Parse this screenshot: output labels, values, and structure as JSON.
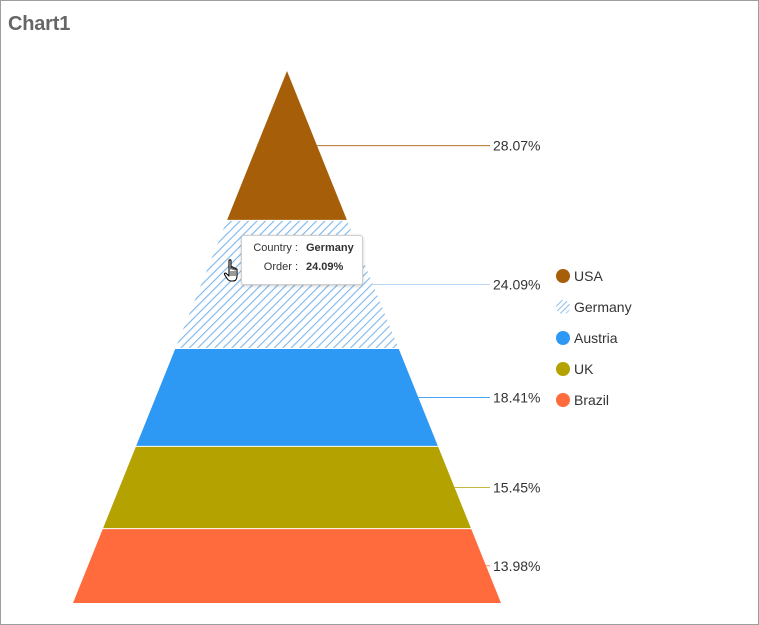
{
  "chart_title": "Chart1",
  "colors": {
    "USA": "#a65f08",
    "Germany": "#9fcbf3",
    "Austria": "#2e99f5",
    "UK": "#b3a200",
    "Brazil": "#ff6b3d"
  },
  "chart_data": {
    "type": "pyramid",
    "title": "Chart1",
    "categories": [
      "USA",
      "Germany",
      "Austria",
      "UK",
      "Brazil"
    ],
    "values": [
      28.07,
      24.09,
      18.41,
      15.45,
      13.98
    ],
    "value_unit": "%",
    "labels": [
      "28.07%",
      "24.09%",
      "18.41%",
      "15.45%",
      "13.98%"
    ],
    "legend": {
      "position": "right",
      "entries": [
        "USA",
        "Germany",
        "Austria",
        "UK",
        "Brazil"
      ]
    },
    "highlighted": "Germany"
  },
  "tooltip": {
    "country_key": "Country :",
    "country_value": "Germany",
    "order_key": "Order :",
    "order_value": "24.09%"
  },
  "cursor_icon": "hand-pointer-icon"
}
